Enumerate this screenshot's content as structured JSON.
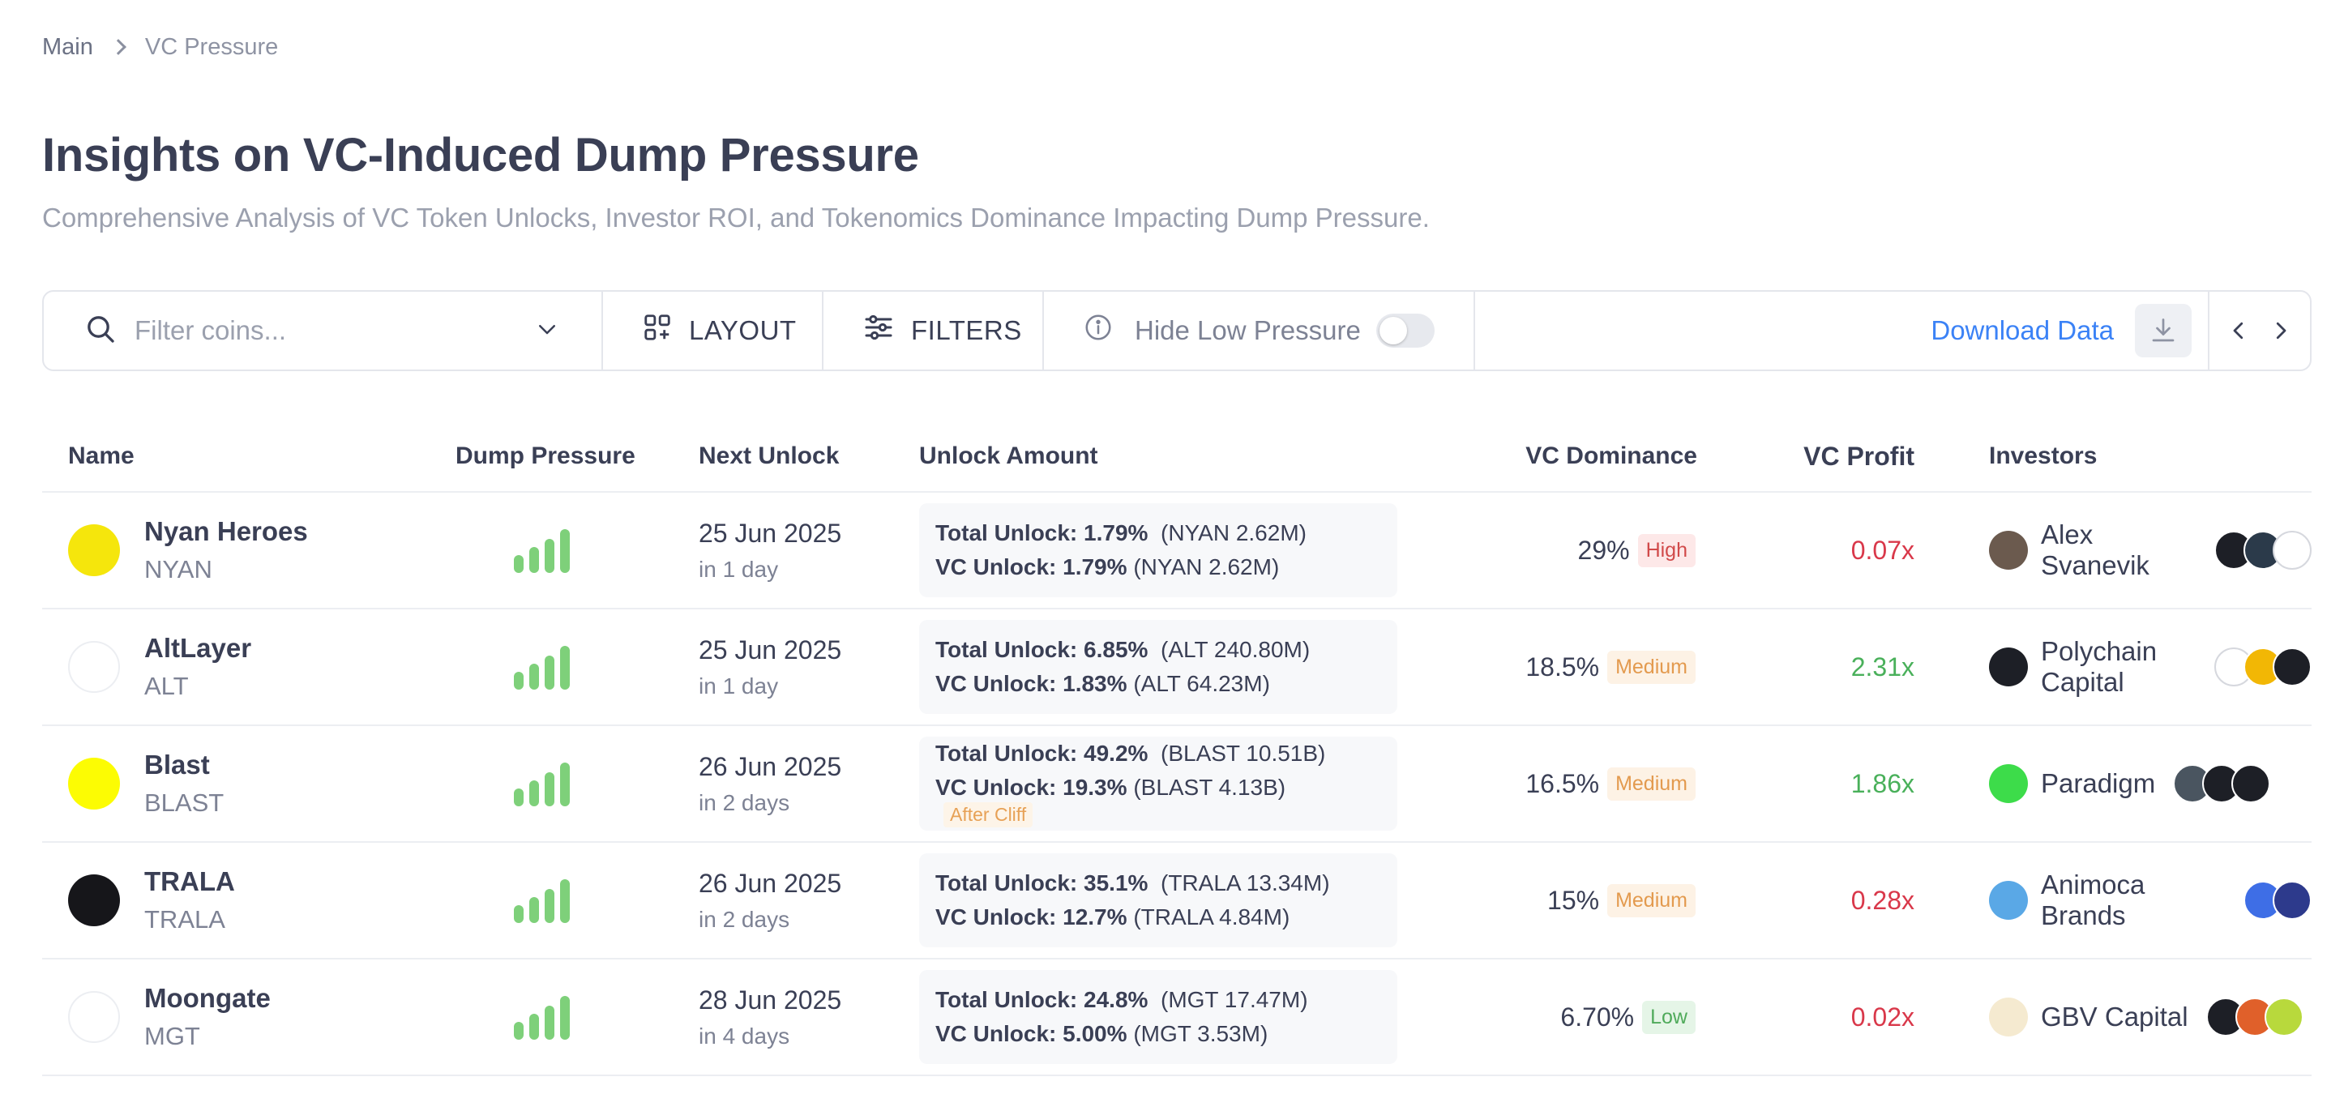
{
  "breadcrumb": {
    "root": "Main",
    "current": "VC Pressure"
  },
  "header": {
    "title": "Insights on VC-Induced Dump Pressure",
    "subtitle": "Comprehensive Analysis of VC Token Unlocks, Investor ROI, and Tokenomics Dominance Impacting Dump Pressure."
  },
  "toolbar": {
    "search_placeholder": "Filter coins...",
    "layout_label": "LAYOUT",
    "filters_label": "FILTERS",
    "hide_low_label": "Hide Low Pressure",
    "hide_low_enabled": false,
    "download_label": "Download Data"
  },
  "table": {
    "headers": {
      "name": "Name",
      "dump": "Dump Pressure",
      "next": "Next Unlock",
      "unlock": "Unlock Amount",
      "dominance": "VC Dominance",
      "profit": "VC Profit",
      "investors": "Investors"
    },
    "rows": [
      {
        "name": "Nyan Heroes",
        "symbol": "NYAN",
        "icon_color": "#f5e60c",
        "date": "25 Jun 2025",
        "relative": "in 1 day",
        "total_label": "Total Unlock: 1.79%",
        "total_amount": "(NYAN 2.62M)",
        "vc_label": "VC Unlock: 1.79%",
        "vc_amount": "(NYAN 2.62M)",
        "vc_tag": "",
        "dominance": "29%",
        "level": "High",
        "profit": "0.07x",
        "profit_dir": "red",
        "investor": "Alex Svanevik",
        "investor_icon_color": "#6b5a4e",
        "avatar_colors": [
          "#1d1f26",
          "#2b3a4a",
          "#ffffff"
        ]
      },
      {
        "name": "AltLayer",
        "symbol": "ALT",
        "icon_color": "#ffffff",
        "date": "25 Jun 2025",
        "relative": "in 1 day",
        "total_label": "Total Unlock: 6.85%",
        "total_amount": "(ALT 240.80M)",
        "vc_label": "VC Unlock: 1.83%",
        "vc_amount": "(ALT 64.23M)",
        "vc_tag": "",
        "dominance": "18.5%",
        "level": "Medium",
        "profit": "2.31x",
        "profit_dir": "green",
        "investor": "Polychain Capital",
        "investor_icon_color": "#1d1f26",
        "avatar_colors": [
          "#ffffff",
          "#f2b705",
          "#1d1f26"
        ]
      },
      {
        "name": "Blast",
        "symbol": "BLAST",
        "icon_color": "#fcfc03",
        "date": "26 Jun 2025",
        "relative": "in 2 days",
        "total_label": "Total Unlock: 49.2%",
        "total_amount": "(BLAST 10.51B)",
        "vc_label": "VC Unlock: 19.3%",
        "vc_amount": "(BLAST 4.13B)",
        "vc_tag": "After Cliff",
        "dominance": "16.5%",
        "level": "Medium",
        "profit": "1.86x",
        "profit_dir": "green",
        "investor": "Paradigm",
        "investor_icon_color": "#3ddc4a",
        "avatar_colors": [
          "#4a5560",
          "#1d1f26",
          "#1d1f26"
        ]
      },
      {
        "name": "TRALA",
        "symbol": "TRALA",
        "icon_color": "#16161a",
        "date": "26 Jun 2025",
        "relative": "in 2 days",
        "total_label": "Total Unlock: 35.1%",
        "total_amount": "(TRALA 13.34M)",
        "vc_label": "VC Unlock: 12.7%",
        "vc_amount": "(TRALA 4.84M)",
        "vc_tag": "",
        "dominance": "15%",
        "level": "Medium",
        "profit": "0.28x",
        "profit_dir": "red",
        "investor": "Animoca Brands",
        "investor_icon_color": "#5aa8e6",
        "avatar_colors": [
          "#3e6ee6",
          "#2d3a8c"
        ]
      },
      {
        "name": "Moongate",
        "symbol": "MGT",
        "icon_color": "#ffffff",
        "date": "28 Jun 2025",
        "relative": "in 4 days",
        "total_label": "Total Unlock: 24.8%",
        "total_amount": "(MGT 17.47M)",
        "vc_label": "VC Unlock: 5.00%",
        "vc_amount": "(MGT 3.53M)",
        "vc_tag": "",
        "dominance": "6.70%",
        "level": "Low",
        "profit": "0.02x",
        "profit_dir": "red",
        "investor": "GBV Capital",
        "investor_icon_color": "#f5ead0",
        "avatar_colors": [
          "#1d1f26",
          "#e0602a",
          "#b8d93c"
        ]
      }
    ]
  }
}
